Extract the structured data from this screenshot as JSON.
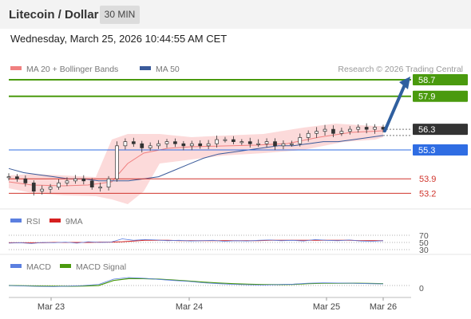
{
  "header": {
    "title": "Litecoin / Dollar",
    "interval": "30 MIN",
    "datetime": "Wednesday, March 25, 2026 10:44:55 AM CET"
  },
  "colors": {
    "accent_green": "#4a9a0e",
    "support_blue": "#2f6de3",
    "support_red": "#d0342c",
    "price_dark": "#333333",
    "ma20": "#f08080",
    "ma50": "#3a5a9a",
    "rsi": "#5b7fe0",
    "rsi_ma": "#d62020",
    "macd": "#5b7fe0",
    "macd_signal": "#4a9a0e",
    "arrow": "#2f5f9f"
  },
  "chart_data": {
    "type": "line",
    "title": "Litecoin / Dollar",
    "interval": "30 MIN",
    "watermark": "Research © 2026 Trading Central",
    "x_labels": [
      "Mar 23",
      "Mar 24",
      "Mar 25",
      "Mar 26"
    ],
    "legend": [
      {
        "name": "MA 20 + Bollinger Bands",
        "color": "#f08080"
      },
      {
        "name": "MA 50",
        "color": "#3a5a9a"
      }
    ],
    "price_levels": [
      {
        "value": 58.7,
        "label": "58.7",
        "type": "resistance",
        "color": "#4a9a0e"
      },
      {
        "value": 57.9,
        "label": "57.9",
        "type": "resistance",
        "color": "#4a9a0e"
      },
      {
        "value": 56.3,
        "label": "56.3",
        "type": "last",
        "color": "#333333"
      },
      {
        "value": 55.3,
        "label": "55.3",
        "type": "pivot",
        "color": "#2f6de3"
      },
      {
        "value": 53.9,
        "label": "53.9",
        "type": "support",
        "color": "#d0342c"
      },
      {
        "value": 53.2,
        "label": "53.2",
        "type": "support",
        "color": "#d0342c"
      }
    ],
    "ylim": [
      52.6,
      59.2
    ],
    "price_series": [
      {
        "i": 0,
        "c": 54.0
      },
      {
        "i": 2,
        "c": 53.9
      },
      {
        "i": 4,
        "c": 53.7
      },
      {
        "i": 6,
        "c": 53.3
      },
      {
        "i": 8,
        "c": 53.4
      },
      {
        "i": 10,
        "c": 53.5
      },
      {
        "i": 12,
        "c": 53.7
      },
      {
        "i": 14,
        "c": 53.8
      },
      {
        "i": 16,
        "c": 53.9
      },
      {
        "i": 18,
        "c": 53.8
      },
      {
        "i": 20,
        "c": 53.5
      },
      {
        "i": 22,
        "c": 53.5
      },
      {
        "i": 24,
        "c": 53.9
      },
      {
        "i": 26,
        "c": 55.5
      },
      {
        "i": 28,
        "c": 55.7
      },
      {
        "i": 30,
        "c": 55.6
      },
      {
        "i": 32,
        "c": 55.4
      },
      {
        "i": 34,
        "c": 55.5
      },
      {
        "i": 36,
        "c": 55.6
      },
      {
        "i": 38,
        "c": 55.7
      },
      {
        "i": 40,
        "c": 55.6
      },
      {
        "i": 42,
        "c": 55.5
      },
      {
        "i": 44,
        "c": 55.6
      },
      {
        "i": 46,
        "c": 55.5
      },
      {
        "i": 48,
        "c": 55.6
      },
      {
        "i": 50,
        "c": 55.8
      },
      {
        "i": 52,
        "c": 55.8
      },
      {
        "i": 54,
        "c": 55.7
      },
      {
        "i": 56,
        "c": 55.7
      },
      {
        "i": 58,
        "c": 55.6
      },
      {
        "i": 60,
        "c": 55.6
      },
      {
        "i": 62,
        "c": 55.7
      },
      {
        "i": 64,
        "c": 55.5
      },
      {
        "i": 66,
        "c": 55.6
      },
      {
        "i": 68,
        "c": 55.6
      },
      {
        "i": 70,
        "c": 55.9
      },
      {
        "i": 72,
        "c": 56.1
      },
      {
        "i": 74,
        "c": 56.2
      },
      {
        "i": 76,
        "c": 56.3
      },
      {
        "i": 78,
        "c": 56.1
      },
      {
        "i": 80,
        "c": 56.2
      },
      {
        "i": 82,
        "c": 56.3
      },
      {
        "i": 84,
        "c": 56.4
      },
      {
        "i": 86,
        "c": 56.3
      },
      {
        "i": 88,
        "c": 56.4
      },
      {
        "i": 90,
        "c": 56.3
      }
    ],
    "ma50_series": [
      54.4,
      54.2,
      54.1,
      54.0,
      53.9,
      53.9,
      53.8,
      53.8,
      53.8,
      53.9,
      54.0,
      54.3,
      54.6,
      54.9,
      55.1,
      55.2,
      55.3,
      55.4,
      55.5,
      55.5,
      55.6,
      55.7,
      55.7,
      55.8,
      55.9,
      56.0
    ],
    "forecast_arrow": {
      "from": 56.3,
      "to": 58.7
    },
    "rsi": {
      "legend": [
        {
          "name": "RSI",
          "color": "#5b7fe0"
        },
        {
          "name": "9MA",
          "color": "#d62020"
        }
      ],
      "levels": [
        "70",
        "50",
        "30"
      ],
      "ylim": [
        0,
        100
      ],
      "values": [
        48,
        49,
        47,
        50,
        49,
        51,
        48,
        52,
        50,
        51,
        60,
        56,
        58,
        57,
        55,
        56,
        54,
        55,
        56,
        53,
        55,
        54,
        56,
        57,
        55,
        56,
        54,
        58,
        56,
        55,
        57,
        54,
        53,
        55
      ],
      "ma_values": [
        49,
        49,
        49,
        49,
        50,
        50,
        50,
        50,
        51,
        51,
        52,
        54,
        56,
        56,
        56,
        55,
        55,
        55,
        55,
        55,
        55,
        55,
        55,
        56,
        56,
        56,
        56,
        56,
        56,
        56,
        56,
        55,
        55,
        55
      ]
    },
    "macd": {
      "legend": [
        {
          "name": "MACD",
          "color": "#5b7fe0"
        },
        {
          "name": "MACD Signal",
          "color": "#4a9a0e"
        }
      ],
      "level": "0",
      "values": [
        0.0,
        -0.02,
        -0.04,
        -0.05,
        -0.03,
        0.0,
        0.05,
        0.28,
        0.35,
        0.32,
        0.27,
        0.22,
        0.18,
        0.12,
        0.08,
        0.05,
        0.03,
        0.02,
        0.04,
        0.06,
        0.1,
        0.12,
        0.11,
        0.1,
        0.08,
        0.07
      ],
      "signal_values": [
        0.0,
        -0.01,
        -0.02,
        -0.03,
        -0.03,
        -0.02,
        0.0,
        0.22,
        0.3,
        0.3,
        0.28,
        0.24,
        0.2,
        0.15,
        0.11,
        0.08,
        0.06,
        0.04,
        0.04,
        0.05,
        0.08,
        0.1,
        0.1,
        0.1,
        0.09,
        0.08
      ]
    }
  }
}
